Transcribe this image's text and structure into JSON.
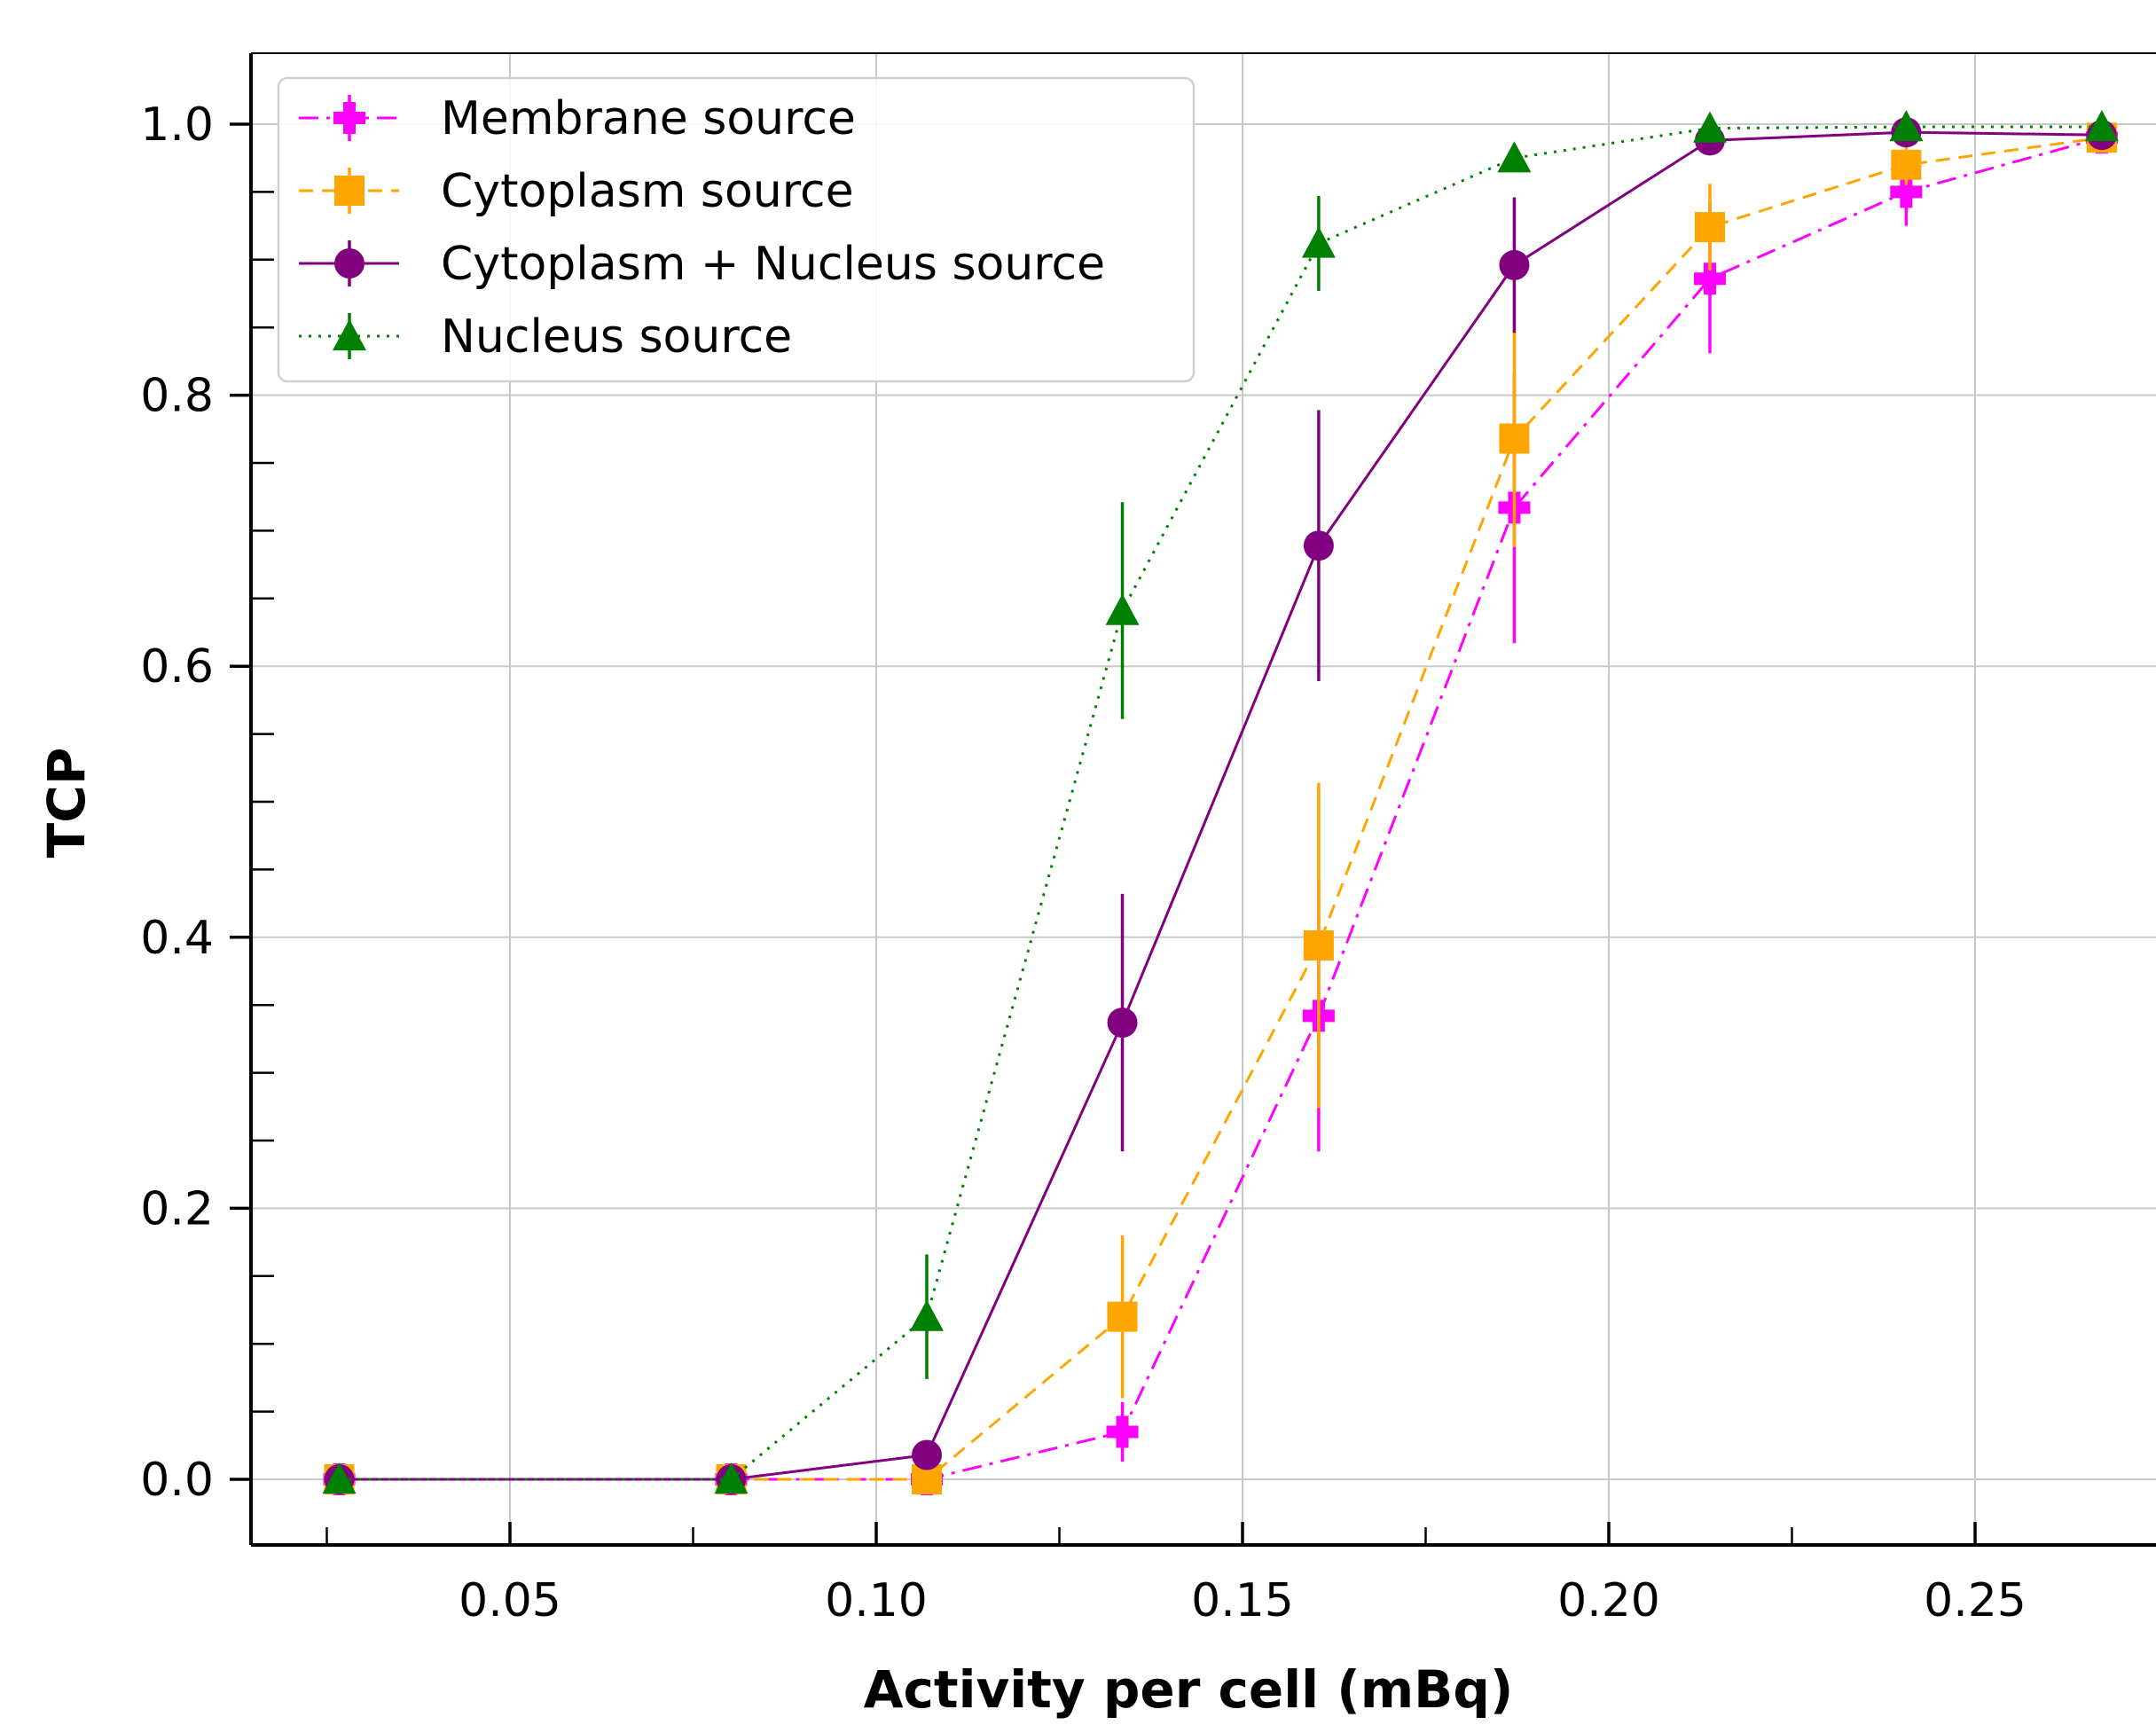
{
  "chart_data": {
    "type": "line",
    "xlabel": "Activity per cell (mBq)",
    "ylabel": "TCP",
    "xlim": [
      0.015,
      0.275
    ],
    "ylim": [
      -0.05,
      1.05
    ],
    "xticks": [
      0.05,
      0.1,
      0.15,
      0.2,
      0.25
    ],
    "xtick_labels": [
      "0.05",
      "0.10",
      "0.15",
      "0.20",
      "0.25"
    ],
    "xminor_ticks": [
      0.025,
      0.075,
      0.125,
      0.175,
      0.225,
      0.275
    ],
    "yticks": [
      0.0,
      0.2,
      0.4,
      0.6,
      0.8,
      1.0
    ],
    "ytick_labels": [
      "0.0",
      "0.2",
      "0.4",
      "0.6",
      "0.8",
      "1.0"
    ],
    "yminor_ticks": [
      0.05,
      0.1,
      0.15,
      0.25,
      0.3,
      0.35,
      0.45,
      0.5,
      0.55,
      0.65,
      0.7,
      0.75,
      0.85,
      0.9,
      0.95
    ],
    "grid": true,
    "legend_position": "top-left",
    "x": [
      0.0267,
      0.0802,
      0.1069,
      0.1336,
      0.1604,
      0.1871,
      0.2138,
      0.2406,
      0.2673
    ],
    "series": [
      {
        "name": "Membrane source",
        "color": "#ff00ff",
        "marker": "plus",
        "line_style": "dashdot",
        "values": [
          0.0,
          0.0,
          0.0,
          0.035,
          0.342,
          0.717,
          0.886,
          0.95,
          0.99
        ],
        "errors": [
          0.0,
          0.0,
          0.0,
          0.022,
          0.1,
          0.1,
          0.055,
          0.025,
          0.008
        ]
      },
      {
        "name": "Cytoplasm source",
        "color": "#ffa500",
        "marker": "square",
        "line_style": "dashed",
        "values": [
          0.0,
          0.0,
          0.0,
          0.12,
          0.394,
          0.768,
          0.924,
          0.97,
          0.99
        ],
        "errors": [
          0.0,
          0.0,
          0.0,
          0.06,
          0.12,
          0.08,
          0.032,
          0.015,
          0.008
        ]
      },
      {
        "name": "Cytoplasm + Nucleus source",
        "color": "#800080",
        "marker": "circle",
        "line_style": "solid",
        "values": [
          0.0,
          0.0,
          0.018,
          0.337,
          0.689,
          0.896,
          0.988,
          0.994,
          0.992
        ],
        "errors": [
          0.0,
          0.0,
          0.0,
          0.095,
          0.1,
          0.05,
          0.006,
          0.004,
          0.004
        ]
      },
      {
        "name": "Nucleus source",
        "color": "#008000",
        "marker": "triangle",
        "line_style": "dotted",
        "values": [
          0.0,
          0.0,
          0.12,
          0.641,
          0.912,
          0.975,
          0.997,
          0.998,
          0.998
        ],
        "errors": [
          0.0,
          0.0,
          0.046,
          0.08,
          0.035,
          0.008,
          0.002,
          0.002,
          0.002
        ]
      }
    ]
  }
}
